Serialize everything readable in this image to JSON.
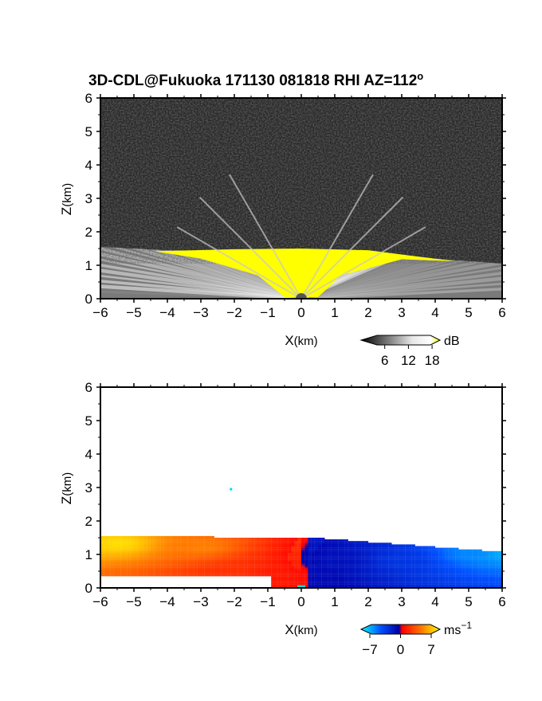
{
  "title": "3D-CDL@Fukuoka 171130 081818 RHI AZ=112",
  "title_suffix": "o",
  "chart_data": [
    {
      "type": "heatmap",
      "quantity": "backscatter intensity",
      "xlabel_main": "X",
      "xlabel_unit": "(km)",
      "ylabel_main": "Z",
      "ylabel_unit": "(km)",
      "xlim": [
        -6,
        6
      ],
      "ylim": [
        0,
        6
      ],
      "x_ticks": [
        "−6",
        "−5",
        "−4",
        "−3",
        "−2",
        "−1",
        "0",
        "1",
        "2",
        "3",
        "4",
        "5",
        "6"
      ],
      "y_ticks": [
        "0",
        "1",
        "2",
        "3",
        "4",
        "5",
        "6"
      ],
      "colorbar": {
        "unit": "dB",
        "tick_labels": [
          "6",
          "12",
          "18"
        ],
        "tick_values": [
          6,
          12,
          18
        ],
        "range": [
          0,
          20
        ],
        "colors": [
          "#000000",
          "#ffffff",
          "#ffff00"
        ]
      },
      "boundary_layer_top_km": [
        {
          "x": -6,
          "z": 1.55
        },
        {
          "x": -4,
          "z": 1.45
        },
        {
          "x": -2,
          "z": 1.42
        },
        {
          "x": 0,
          "z": 1.5
        },
        {
          "x": 2,
          "z": 1.42
        },
        {
          "x": 4,
          "z": 1.2
        },
        {
          "x": 6,
          "z": 1.05
        }
      ],
      "saturated_core_top_km": 1.5
    },
    {
      "type": "heatmap",
      "quantity": "radial velocity",
      "xlabel_main": "X",
      "xlabel_unit": "(km)",
      "ylabel_main": "Z",
      "ylabel_unit": "(km)",
      "xlim": [
        -6,
        6
      ],
      "ylim": [
        0,
        6
      ],
      "x_ticks": [
        "−6",
        "−5",
        "−4",
        "−3",
        "−2",
        "−1",
        "0",
        "1",
        "2",
        "3",
        "4",
        "5",
        "6"
      ],
      "y_ticks": [
        "0",
        "1",
        "2",
        "3",
        "4",
        "5",
        "6"
      ],
      "colorbar": {
        "unit_base": "ms",
        "unit_exp": "−1",
        "tick_labels": [
          "−7",
          "0",
          "7"
        ],
        "tick_values": [
          -7,
          0,
          7
        ],
        "range": [
          -9,
          9
        ],
        "colors": [
          "#00ffff",
          "#0040ff",
          "#0000a0",
          "#ff0000",
          "#ff8000",
          "#ffff00"
        ]
      },
      "velocity_samples": [
        {
          "x": -5.5,
          "z": 1.3,
          "v": 8
        },
        {
          "x": -3.0,
          "z": 1.2,
          "v": 5
        },
        {
          "x": -2.0,
          "z": 0.5,
          "v": 2
        },
        {
          "x": -1.0,
          "z": 0.3,
          "v": 1
        },
        {
          "x": 1.0,
          "z": 0.8,
          "v": -1
        },
        {
          "x": 3.0,
          "z": 0.8,
          "v": -3
        },
        {
          "x": 5.0,
          "z": 1.0,
          "v": -6
        },
        {
          "x": 6.0,
          "z": 1.0,
          "v": -7
        }
      ],
      "isolated_echo": {
        "x": -2.1,
        "z": 2.95,
        "v": -8
      }
    }
  ]
}
